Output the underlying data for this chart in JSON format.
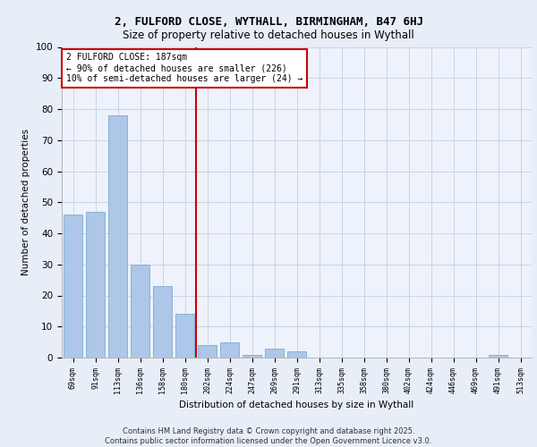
{
  "title1": "2, FULFORD CLOSE, WYTHALL, BIRMINGHAM, B47 6HJ",
  "title2": "Size of property relative to detached houses in Wythall",
  "xlabel": "Distribution of detached houses by size in Wythall",
  "ylabel": "Number of detached properties",
  "categories": [
    "69sqm",
    "91sqm",
    "113sqm",
    "136sqm",
    "158sqm",
    "180sqm",
    "202sqm",
    "224sqm",
    "247sqm",
    "269sqm",
    "291sqm",
    "313sqm",
    "335sqm",
    "358sqm",
    "380sqm",
    "402sqm",
    "424sqm",
    "446sqm",
    "469sqm",
    "491sqm",
    "513sqm"
  ],
  "values": [
    46,
    47,
    78,
    30,
    23,
    14,
    4,
    5,
    1,
    3,
    2,
    0,
    0,
    0,
    0,
    0,
    0,
    0,
    0,
    1,
    0
  ],
  "bar_color": "#aec6e8",
  "bar_edge_color": "#7aadd4",
  "vline_x": 5.5,
  "vline_color": "#cc0000",
  "annotation_text": "2 FULFORD CLOSE: 187sqm\n← 90% of detached houses are smaller (226)\n10% of semi-detached houses are larger (24) →",
  "annotation_box_color": "#cc0000",
  "ylim": [
    0,
    100
  ],
  "yticks": [
    0,
    10,
    20,
    30,
    40,
    50,
    60,
    70,
    80,
    90,
    100
  ],
  "footer1": "Contains HM Land Registry data © Crown copyright and database right 2025.",
  "footer2": "Contains public sector information licensed under the Open Government Licence v3.0.",
  "bg_color": "#e8eef8",
  "plot_bg_color": "#eef2fa",
  "grid_color": "#c8d4e8"
}
